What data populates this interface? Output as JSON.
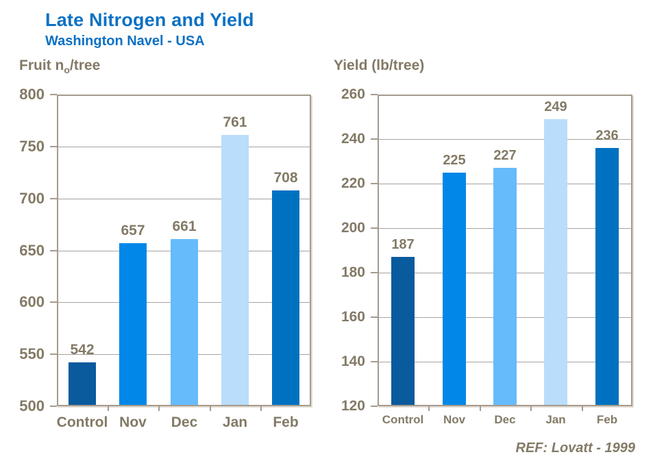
{
  "page": {
    "title": "Late Nitrogen and Yield",
    "subtitle": "Washington Navel - USA",
    "footer_ref": "REF: Lovatt - 1999"
  },
  "colors": {
    "title_blue": "#0c71c4",
    "label_brown": "#837a66",
    "gridline_gray": "#a8a39e",
    "plot_border": "#a59b8d"
  },
  "chart_data": [
    {
      "type": "bar",
      "title": "Fruit no/tree",
      "title_parts": {
        "pre": "Fruit n",
        "sub": "o",
        "post": "/tree"
      },
      "categories": [
        "Control",
        "Nov",
        "Dec",
        "Jan",
        "Feb"
      ],
      "values": [
        542,
        657,
        661,
        761,
        708
      ],
      "ylim": [
        500,
        800
      ],
      "ytick_step": 50,
      "ytick_labels": [
        "800",
        "750",
        "700",
        "650",
        "600",
        "550",
        "500"
      ],
      "grid": true,
      "legend": "none",
      "bar_colors": [
        "#0a5a9e",
        "#0087e8",
        "#66bbfb",
        "#b9ddfb",
        "#0071c1"
      ]
    },
    {
      "type": "bar",
      "title": "Yield (lb/tree)",
      "title_parts": {
        "pre": "Yield (lb/tree)",
        "sub": "",
        "post": ""
      },
      "categories": [
        "Control",
        "Nov",
        "Dec",
        "Jan",
        "Feb"
      ],
      "values": [
        187,
        225,
        227,
        249,
        236
      ],
      "ylim": [
        120,
        260
      ],
      "ytick_step": 20,
      "ytick_labels": [
        "260",
        "240",
        "220",
        "200",
        "180",
        "160",
        "140",
        "120"
      ],
      "grid": true,
      "legend": "none",
      "bar_colors": [
        "#0a5a9e",
        "#0087e8",
        "#66bbfb",
        "#b9ddfb",
        "#0071c1"
      ]
    }
  ]
}
